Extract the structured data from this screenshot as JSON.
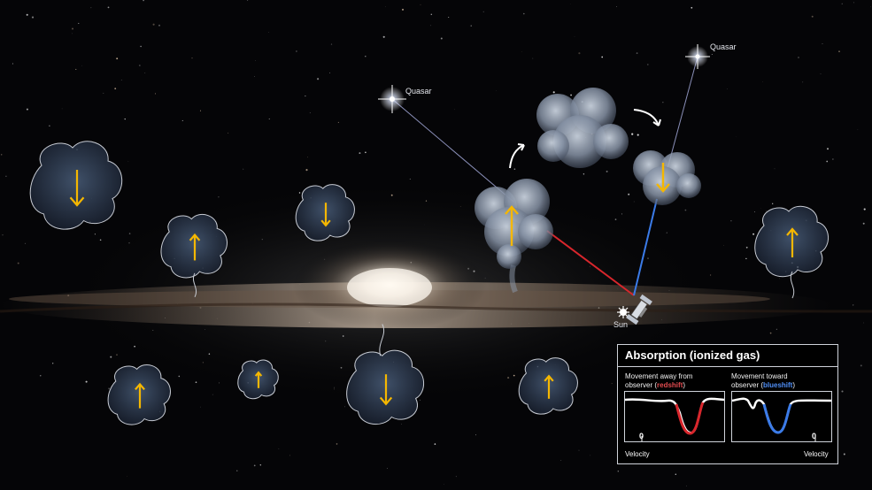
{
  "labels": {
    "quasar_1": "Quasar",
    "quasar_2": "Quasar",
    "sun": "Sun"
  },
  "panel": {
    "title": "Absorption (ionized gas)",
    "left": {
      "line1": "Movement away from",
      "line2_prefix": "observer (",
      "highlight": "redshift",
      "line2_suffix": ")",
      "zero_label": "0",
      "axis_label": "Velocity"
    },
    "right": {
      "line1": "Movement toward",
      "line2_prefix": "observer (",
      "highlight": "blueshift",
      "line2_suffix": ")",
      "zero_label": "0",
      "axis_label": "Velocity"
    }
  },
  "colors": {
    "arrow": "#f5b700",
    "redshift_line": "#d8262c",
    "blueshift_line": "#3b7be8",
    "quasar_sightline": "#8a8fb8",
    "panel_border": "#cfd3da"
  },
  "icons": [
    "quasar-star-icon",
    "sun-icon",
    "telescope-icon",
    "curved-arrow-icon",
    "up-arrow-icon",
    "down-arrow-icon"
  ]
}
